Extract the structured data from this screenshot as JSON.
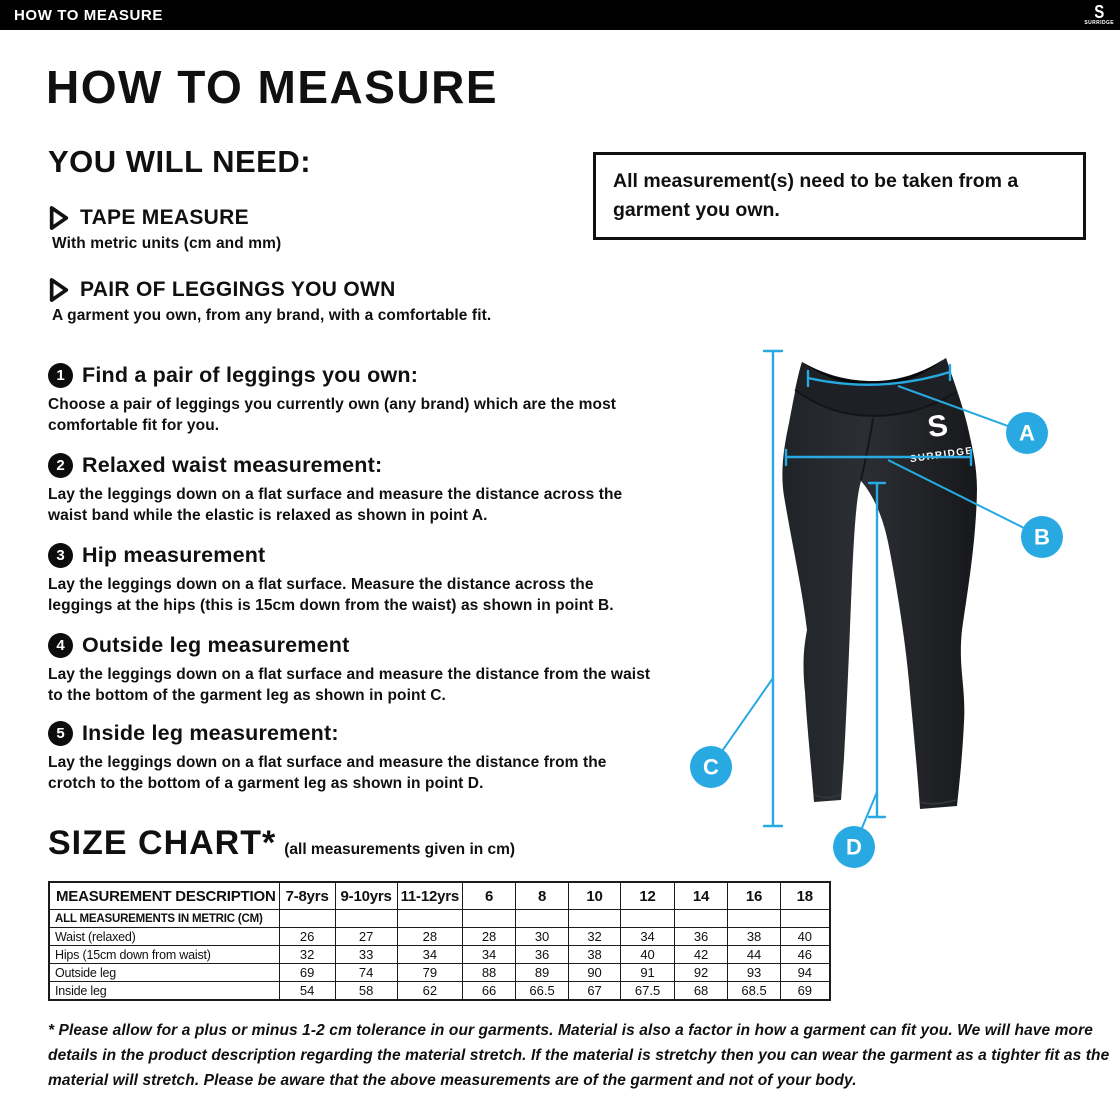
{
  "brand": {
    "glyph": "S",
    "name": "SURRIDGE"
  },
  "topbar": {
    "title": "HOW TO MEASURE"
  },
  "title": "HOW TO MEASURE",
  "you_will_need": {
    "heading": "YOU WILL NEED:",
    "items": [
      {
        "label": "TAPE MEASURE",
        "description": "With metric units (cm and mm)"
      },
      {
        "label": "PAIR OF LEGGINGS YOU OWN",
        "description": "A garment you own, from any brand, with a comfortable fit."
      }
    ]
  },
  "notice": "All measurement(s) need to be taken from a garment you own.",
  "steps": [
    {
      "number": "1",
      "title": "Find a pair of leggings you own:",
      "body": "Choose a pair of leggings you currently own (any brand) which are the most comfortable fit for you."
    },
    {
      "number": "2",
      "title": "Relaxed waist measurement:",
      "body": "Lay the leggings down on a flat surface and measure the distance across the waist band while the elastic is relaxed as shown in point A."
    },
    {
      "number": "3",
      "title": "Hip measurement",
      "body": "Lay the leggings down on a flat surface. Measure the distance across the leggings at the hips (this is 15cm down from the waist) as shown in point B."
    },
    {
      "number": "4",
      "title": "Outside leg measurement",
      "body": "Lay the leggings down on a flat surface and measure the distance from the waist to the bottom of the garment leg as shown in point C."
    },
    {
      "number": "5",
      "title": "Inside leg measurement:",
      "body": "Lay the leggings down on a flat surface and measure the distance from the crotch to the bottom of a garment leg as shown in point D."
    }
  ],
  "figure": {
    "accent": "#29a9e1",
    "labels": [
      "A",
      "B",
      "C",
      "D"
    ]
  },
  "size_chart": {
    "heading": "SIZE CHART*",
    "subheading": "(all measurements given in cm)",
    "table": {
      "header": [
        "MEASUREMENT DESCRIPTION",
        "7-8yrs",
        "9-10yrs",
        "11-12yrs",
        "6",
        "8",
        "10",
        "12",
        "14",
        "16",
        "18"
      ],
      "note_row": "ALL MEASUREMENTS IN METRIC (CM)",
      "rows": [
        {
          "label": "Waist (relaxed)",
          "values": [
            "26",
            "27",
            "28",
            "28",
            "30",
            "32",
            "34",
            "36",
            "38",
            "40"
          ]
        },
        {
          "label": "Hips (15cm down from waist)",
          "values": [
            "32",
            "33",
            "34",
            "34",
            "36",
            "38",
            "40",
            "42",
            "44",
            "46"
          ]
        },
        {
          "label": "Outside leg",
          "values": [
            "69",
            "74",
            "79",
            "88",
            "89",
            "90",
            "91",
            "92",
            "93",
            "94"
          ]
        },
        {
          "label": "Inside leg",
          "values": [
            "54",
            "58",
            "62",
            "66",
            "66.5",
            "67",
            "67.5",
            "68",
            "68.5",
            "69"
          ]
        }
      ]
    }
  },
  "footnote": "* Please allow for a plus or minus 1-2 cm tolerance in our garments. Material is also a factor in how a garment can fit you. We will have more details in the product description regarding the material stretch.  If the material is stretchy then you can wear the garment as a tighter fit as the material will stretch.  Please be aware that the above measurements are of the garment and not of your body."
}
